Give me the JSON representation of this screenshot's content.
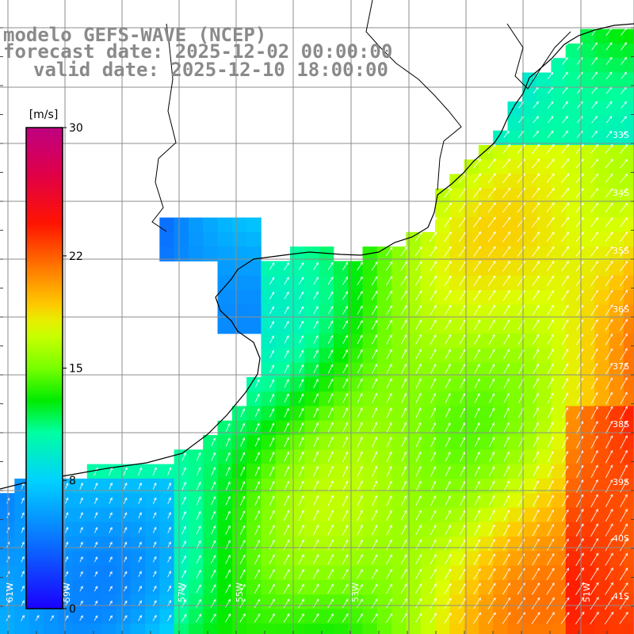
{
  "header": {
    "model": "modelo GEFS-WAVE (NCEP)",
    "forecast": "forecast date: 2025-12-02 00:00:00",
    "valid": "valid date: 2025-12-10 18:00:00"
  },
  "colorbar": {
    "unit": "[m/s]",
    "ticks": [
      {
        "value": 30,
        "label": "30"
      },
      {
        "value": 22,
        "label": "22"
      },
      {
        "value": 15,
        "label": "15"
      },
      {
        "value": 8,
        "label": "8"
      },
      {
        "value": 0,
        "label": "0"
      }
    ],
    "range": [
      0,
      30
    ],
    "palette": [
      "#1a00ff",
      "#0a6cff",
      "#00c8ff",
      "#00ff9a",
      "#00e600",
      "#9aff00",
      "#ffff00",
      "#ffaa00",
      "#ff3a00",
      "#ff0000",
      "#e0004a",
      "#c0007a"
    ]
  },
  "map": {
    "lon_labels": [
      "61W",
      "59W",
      "57W",
      "55W",
      "53W",
      "51W"
    ],
    "lat_labels": [
      "33S",
      "34S",
      "35S",
      "36S",
      "37S",
      "38S",
      "39S",
      "40S",
      "41S"
    ],
    "land_color": "#ffffff",
    "grid_color": "#8c8c8c",
    "coast_color": "#000000",
    "arrow_color": "#ffffff"
  }
}
